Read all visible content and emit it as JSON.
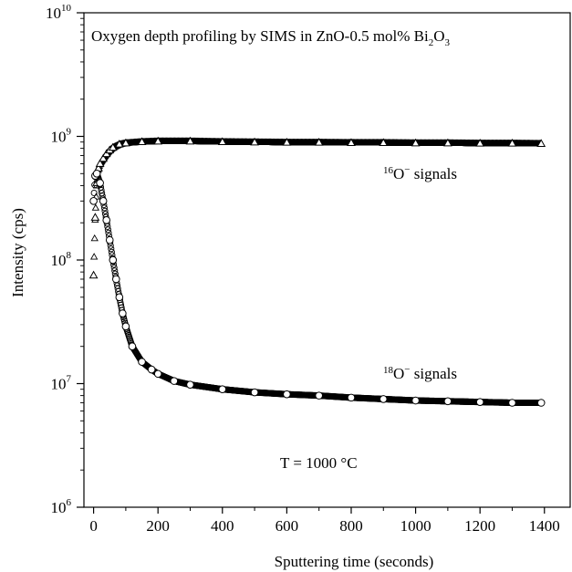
{
  "chart_data": {
    "type": "scatter",
    "title": "Oxygen depth profiling by SIMS in ZnO-0.5 mol% Bi2O3",
    "title_parts": {
      "main": "Oxygen depth profiling by SIMS in ZnO-0.5 mol% Bi",
      "sub1": "2",
      "mid": "O",
      "sub2": "3"
    },
    "xlabel": "Sputtering time (seconds)",
    "ylabel": "Intensity (cps)",
    "xlim": [
      -30,
      1480
    ],
    "ylim": [
      1000000,
      10000000000
    ],
    "yscale": "log",
    "x_ticks": [
      0,
      200,
      400,
      600,
      800,
      1000,
      1200,
      1400
    ],
    "x_tick_labels": [
      "0",
      "200",
      "400",
      "600",
      "800",
      "1000",
      "1200",
      "1400"
    ],
    "y_ticks": [
      1000000,
      10000000,
      100000000,
      1000000000,
      10000000000
    ],
    "y_tick_labels": [
      {
        "base": "10",
        "exp": "6"
      },
      {
        "base": "10",
        "exp": "7"
      },
      {
        "base": "10",
        "exp": "8"
      },
      {
        "base": "10",
        "exp": "9"
      },
      {
        "base": "10",
        "exp": "10"
      }
    ],
    "grid": false,
    "series": [
      {
        "name": "16O- signals",
        "marker": "triangle",
        "x": [
          0,
          5,
          10,
          15,
          20,
          30,
          40,
          50,
          60,
          80,
          100,
          150,
          200,
          300,
          400,
          500,
          600,
          700,
          800,
          900,
          1000,
          1100,
          1200,
          1300,
          1390
        ],
        "y": [
          75000000,
          220000000,
          420000000,
          550000000,
          600000000,
          660000000,
          720000000,
          770000000,
          810000000,
          860000000,
          880000000,
          900000000,
          910000000,
          910000000,
          900000000,
          895000000,
          890000000,
          890000000,
          885000000,
          885000000,
          880000000,
          880000000,
          875000000,
          875000000,
          870000000
        ]
      },
      {
        "name": "18O- signals",
        "marker": "circle",
        "x": [
          0,
          5,
          10,
          20,
          30,
          40,
          50,
          60,
          70,
          80,
          90,
          100,
          120,
          150,
          180,
          200,
          250,
          300,
          400,
          500,
          600,
          700,
          800,
          900,
          1000,
          1100,
          1200,
          1300,
          1390
        ],
        "y": [
          300000000,
          480000000,
          500000000,
          420000000,
          300000000,
          210000000,
          145000000,
          100000000,
          70000000,
          50000000,
          37000000,
          29000000,
          20000000,
          15000000,
          13000000,
          12000000,
          10500000,
          9800000,
          9000000,
          8500000,
          8200000,
          8000000,
          7700000,
          7500000,
          7300000,
          7200000,
          7100000,
          7000000,
          7000000
        ]
      }
    ],
    "annotations": {
      "o16": {
        "sup": "16",
        "text": "O",
        "sup2": "−",
        "tail": " signals"
      },
      "o18": {
        "sup": "18",
        "text": "O",
        "sup2": "−",
        "tail": " signals"
      },
      "temperature": "T = 1000 °C"
    }
  }
}
